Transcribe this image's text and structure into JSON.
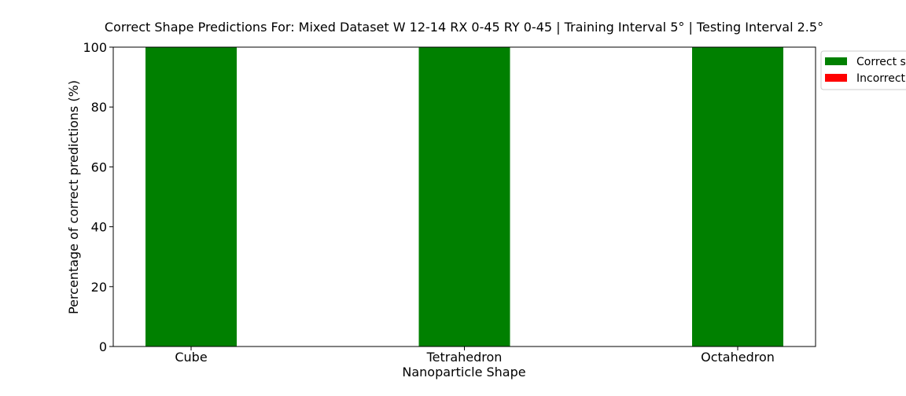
{
  "chart_data": {
    "type": "bar",
    "title": "Correct Shape Predictions For: Mixed Dataset W 12-14 RX 0-45 RY 0-45 | Training Interval 5° | Testing Interval 2.5°",
    "xlabel": "Nanoparticle Shape",
    "ylabel": "Percentage of correct predictions (%)",
    "categories": [
      "Cube",
      "Tetrahedron",
      "Octahedron"
    ],
    "series": [
      {
        "name": "Correct s",
        "values": [
          100,
          100,
          100
        ]
      },
      {
        "name": "Incorrect",
        "values": [
          0,
          0,
          0
        ]
      }
    ],
    "stacked": true,
    "ylim": [
      0,
      100
    ],
    "yticks": [
      0,
      20,
      40,
      60,
      80,
      100
    ],
    "grid": false,
    "legend_position": "outside-right-top",
    "colors": {
      "correct": "#008000",
      "incorrect": "#ff0000"
    }
  }
}
